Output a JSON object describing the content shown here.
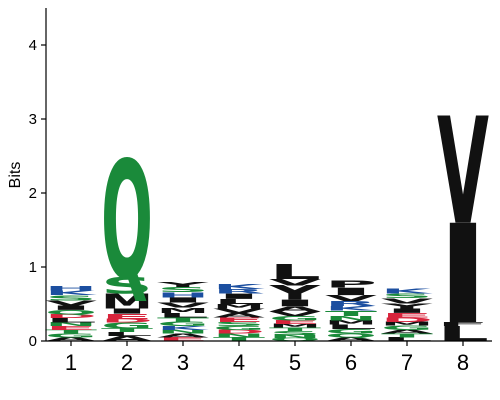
{
  "chart_data": {
    "type": "sequence_logo",
    "ylabel": "Bits",
    "xlabel": "",
    "ylim": [
      0,
      4.5
    ],
    "yticks": [
      0,
      1,
      2,
      3,
      4
    ],
    "positions": [
      "1",
      "2",
      "3",
      "4",
      "5",
      "6",
      "7",
      "8"
    ],
    "colors": {
      "A": "#111111",
      "C": "#111111",
      "F": "#111111",
      "I": "#111111",
      "L": "#111111",
      "M": "#111111",
      "P": "#111111",
      "V": "#111111",
      "W": "#111111",
      "Y": "#111111",
      "G": "#1a8a3a",
      "Q": "#1a8a3a",
      "S": "#1a8a3a",
      "T": "#1a8a3a",
      "N": "#1a8a3a",
      "K": "#1c4fa0",
      "R": "#1c4fa0",
      "H": "#1c4fa0",
      "D": "#d8243c",
      "E": "#d8243c"
    },
    "stacks": [
      [
        {
          "letter": "A",
          "height": 0.05
        },
        {
          "letter": "G",
          "height": 0.05
        },
        {
          "letter": "T",
          "height": 0.05
        },
        {
          "letter": "E",
          "height": 0.05
        },
        {
          "letter": "N",
          "height": 0.05
        },
        {
          "letter": "L",
          "height": 0.06
        },
        {
          "letter": "D",
          "height": 0.05
        },
        {
          "letter": "Q",
          "height": 0.06
        },
        {
          "letter": "I",
          "height": 0.06
        },
        {
          "letter": "V",
          "height": 0.07
        },
        {
          "letter": "S",
          "height": 0.07
        },
        {
          "letter": "K",
          "height": 0.06
        },
        {
          "letter": "H",
          "height": 0.06
        }
      ],
      [
        {
          "letter": "A",
          "height": 0.07
        },
        {
          "letter": "L",
          "height": 0.05
        },
        {
          "letter": "T",
          "height": 0.05
        },
        {
          "letter": "G",
          "height": 0.08
        },
        {
          "letter": "D",
          "height": 0.05
        },
        {
          "letter": "E",
          "height": 0.07
        },
        {
          "letter": "I",
          "height": 0.07
        },
        {
          "letter": "M",
          "height": 0.2
        },
        {
          "letter": "S",
          "height": 0.22
        },
        {
          "letter": "Q",
          "height": 1.6
        }
      ],
      [
        {
          "letter": "E",
          "height": 0.05
        },
        {
          "letter": "A",
          "height": 0.05
        },
        {
          "letter": "N",
          "height": 0.05
        },
        {
          "letter": "K",
          "height": 0.05
        },
        {
          "letter": "G",
          "height": 0.06
        },
        {
          "letter": "T",
          "height": 0.06
        },
        {
          "letter": "L",
          "height": 0.06
        },
        {
          "letter": "M",
          "height": 0.07
        },
        {
          "letter": "V",
          "height": 0.07
        },
        {
          "letter": "I",
          "height": 0.07
        },
        {
          "letter": "H",
          "height": 0.07
        },
        {
          "letter": "S",
          "height": 0.07
        },
        {
          "letter": "Y",
          "height": 0.07
        }
      ],
      [
        {
          "letter": "T",
          "height": 0.05
        },
        {
          "letter": "N",
          "height": 0.05
        },
        {
          "letter": "D",
          "height": 0.05
        },
        {
          "letter": "G",
          "height": 0.05
        },
        {
          "letter": "S",
          "height": 0.06
        },
        {
          "letter": "E",
          "height": 0.06
        },
        {
          "letter": "A",
          "height": 0.06
        },
        {
          "letter": "V",
          "height": 0.06
        },
        {
          "letter": "M",
          "height": 0.06
        },
        {
          "letter": "L",
          "height": 0.07
        },
        {
          "letter": "I",
          "height": 0.07
        },
        {
          "letter": "R",
          "height": 0.06
        },
        {
          "letter": "K",
          "height": 0.07
        }
      ],
      [
        {
          "letter": "Q",
          "height": 0.04
        },
        {
          "letter": "N",
          "height": 0.04
        },
        {
          "letter": "S",
          "height": 0.05
        },
        {
          "letter": "T",
          "height": 0.05
        },
        {
          "letter": "M",
          "height": 0.05
        },
        {
          "letter": "E",
          "height": 0.05
        },
        {
          "letter": "G",
          "height": 0.06
        },
        {
          "letter": "V",
          "height": 0.06
        },
        {
          "letter": "A",
          "height": 0.07
        },
        {
          "letter": "I",
          "height": 0.09
        },
        {
          "letter": "Y",
          "height": 0.19
        },
        {
          "letter": "V",
          "height": 0.09
        },
        {
          "letter": "L",
          "height": 0.2
        }
      ],
      [
        {
          "letter": "A",
          "height": 0.05
        },
        {
          "letter": "Q",
          "height": 0.05
        },
        {
          "letter": "G",
          "height": 0.06
        },
        {
          "letter": "L",
          "height": 0.06
        },
        {
          "letter": "M",
          "height": 0.06
        },
        {
          "letter": "N",
          "height": 0.06
        },
        {
          "letter": "T",
          "height": 0.07
        },
        {
          "letter": "K",
          "height": 0.06
        },
        {
          "letter": "R",
          "height": 0.07
        },
        {
          "letter": "V",
          "height": 0.08
        },
        {
          "letter": "I",
          "height": 0.1
        },
        {
          "letter": "P",
          "height": 0.1
        }
      ],
      [
        {
          "letter": "L",
          "height": 0.05
        },
        {
          "letter": "T",
          "height": 0.05
        },
        {
          "letter": "A",
          "height": 0.05
        },
        {
          "letter": "G",
          "height": 0.06
        },
        {
          "letter": "M",
          "height": 0.05
        },
        {
          "letter": "D",
          "height": 0.06
        },
        {
          "letter": "E",
          "height": 0.06
        },
        {
          "letter": "I",
          "height": 0.06
        },
        {
          "letter": "Y",
          "height": 0.07
        },
        {
          "letter": "V",
          "height": 0.07
        },
        {
          "letter": "S",
          "height": 0.06
        },
        {
          "letter": "K",
          "height": 0.07
        }
      ],
      [
        {
          "letter": "L",
          "height": 0.2
        },
        {
          "letter": "F",
          "height": 0.05
        },
        {
          "letter": "I",
          "height": 1.35
        },
        {
          "letter": "V",
          "height": 1.45
        }
      ]
    ]
  }
}
